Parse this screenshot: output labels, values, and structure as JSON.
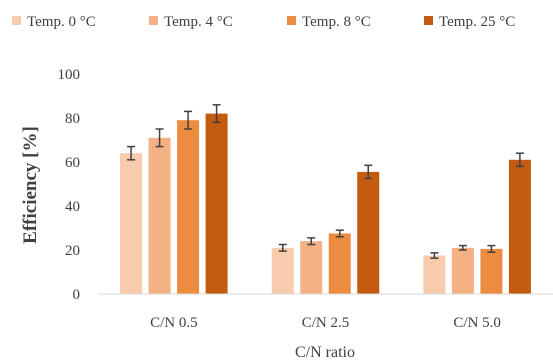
{
  "chart_data": {
    "type": "bar",
    "title": "",
    "xlabel": "C/N ratio",
    "ylabel": "Efficiency [%]",
    "ylim": [
      0,
      100
    ],
    "yticks": [
      0,
      20,
      40,
      60,
      80,
      100
    ],
    "grid": false,
    "legend_position": "top",
    "categories": [
      "C/N 0.5",
      "C/N 2.5",
      "C/N 5.0"
    ],
    "series": [
      {
        "name": "Temp. 0 °C",
        "color": "#f8cbad",
        "values": [
          64,
          21,
          17.5
        ],
        "errors": [
          3,
          1.5,
          1.2
        ]
      },
      {
        "name": "Temp. 4 °C",
        "color": "#f4b183",
        "values": [
          71,
          24,
          21
        ],
        "errors": [
          4,
          1.5,
          1.0
        ]
      },
      {
        "name": "Temp. 8 °C",
        "color": "#ed8b3f",
        "values": [
          79,
          27.5,
          20.5
        ],
        "errors": [
          4,
          1.5,
          1.5
        ]
      },
      {
        "name": "Temp. 25 °C",
        "color": "#c55a11",
        "values": [
          82,
          55.5,
          61
        ],
        "errors": [
          4,
          3,
          3
        ]
      }
    ]
  }
}
